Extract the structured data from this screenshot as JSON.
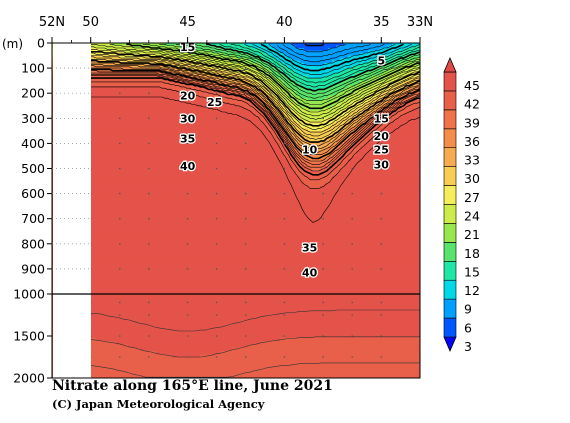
{
  "chart_data": {
    "type": "heatmap",
    "title": "Nitrate along 165°E line, June 2021",
    "credit": "(C) Japan Meteorological Agency",
    "ylabel": "(m)",
    "x_ticks": [
      "52N",
      "50",
      "45",
      "40",
      "35",
      "33N"
    ],
    "x_tick_values": [
      52,
      50,
      45,
      40,
      35,
      33
    ],
    "xlim": [
      52,
      33
    ],
    "upper_panel": {
      "ylim": [
        0,
        1000
      ],
      "y_ticks": [
        0,
        100,
        200,
        300,
        400,
        500,
        600,
        700,
        800,
        900,
        1000
      ]
    },
    "lower_panel": {
      "ylim": [
        1000,
        2000
      ],
      "y_ticks": [
        1500,
        2000
      ]
    },
    "no_data_north_of": 50,
    "stations_lat": [
      50,
      48.5,
      47,
      45,
      43.5,
      42,
      40,
      38,
      36.5,
      35,
      33
    ],
    "contour_levels": [
      3,
      6,
      9,
      12,
      15,
      18,
      21,
      24,
      27,
      30,
      33,
      36,
      39,
      42,
      45
    ],
    "contour_labels": [
      {
        "text": "15",
        "lat": 45.0,
        "depth": 15
      },
      {
        "text": "5",
        "lat": 35.0,
        "depth": 70
      },
      {
        "text": "20",
        "lat": 45.0,
        "depth": 210
      },
      {
        "text": "25",
        "lat": 43.6,
        "depth": 235
      },
      {
        "text": "30",
        "lat": 45.0,
        "depth": 300
      },
      {
        "text": "15",
        "lat": 35.0,
        "depth": 300
      },
      {
        "text": "35",
        "lat": 45.0,
        "depth": 380
      },
      {
        "text": "20",
        "lat": 35.0,
        "depth": 370
      },
      {
        "text": "10",
        "lat": 38.7,
        "depth": 425
      },
      {
        "text": "25",
        "lat": 35.0,
        "depth": 425
      },
      {
        "text": "40",
        "lat": 45.0,
        "depth": 490
      },
      {
        "text": "30",
        "lat": 35.0,
        "depth": 485
      },
      {
        "text": "35",
        "lat": 38.7,
        "depth": 815
      },
      {
        "text": "40",
        "lat": 38.7,
        "depth": 915
      }
    ],
    "colorbar": {
      "labels": [
        "45",
        "42",
        "39",
        "36",
        "33",
        "30",
        "27",
        "24",
        "21",
        "18",
        "15",
        "12",
        "9",
        "6",
        "3"
      ],
      "colors": [
        "#0000ff",
        "#0057ff",
        "#00a0ff",
        "#00d8e8",
        "#1ee6a4",
        "#58e36c",
        "#96e84e",
        "#cdec4a",
        "#f5ee5a",
        "#f7cd53",
        "#f6ab4f",
        "#f48c4b",
        "#f0734a",
        "#e9604a",
        "#e45349",
        "#e04a46"
      ]
    },
    "colorscale_values": [
      0,
      3,
      6,
      9,
      12,
      15,
      18,
      21,
      24,
      27,
      30,
      33,
      36,
      39,
      42,
      45
    ]
  }
}
